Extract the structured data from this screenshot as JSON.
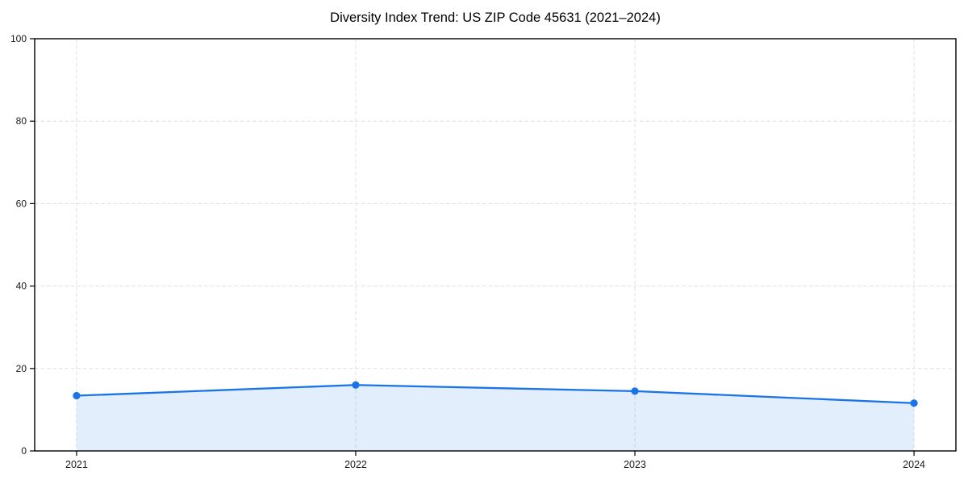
{
  "figure": {
    "background": "#ffffff"
  },
  "chart_data": {
    "type": "area",
    "title": "Diversity Index Trend: US ZIP Code 45631 (2021–2024)",
    "categories": [
      "2021",
      "2022",
      "2023",
      "2024"
    ],
    "x": [
      2021,
      2022,
      2023,
      2024
    ],
    "series": [
      {
        "name": "Diversity Index",
        "values": [
          13.4,
          16.0,
          14.5,
          11.6
        ]
      }
    ],
    "xlabel": "",
    "ylabel": "",
    "xlim": [
      2020.85,
      2024.15
    ],
    "ylim": [
      0,
      100
    ],
    "yticks": [
      0,
      20,
      40,
      60,
      80,
      100
    ],
    "ytick_labels": [
      "0",
      "20",
      "40",
      "60",
      "80",
      "100"
    ],
    "grid": true,
    "grid_style": "dashed",
    "grid_color": "#e0e0e0",
    "line_color": "#1a73e8",
    "marker": "circle",
    "fill_color": "#1a73e8",
    "fill_opacity": 0.12,
    "axis_color": "#000000",
    "tick_label_color": "#1a1a1a",
    "legend": "none",
    "plot_background": "#ffffff"
  }
}
